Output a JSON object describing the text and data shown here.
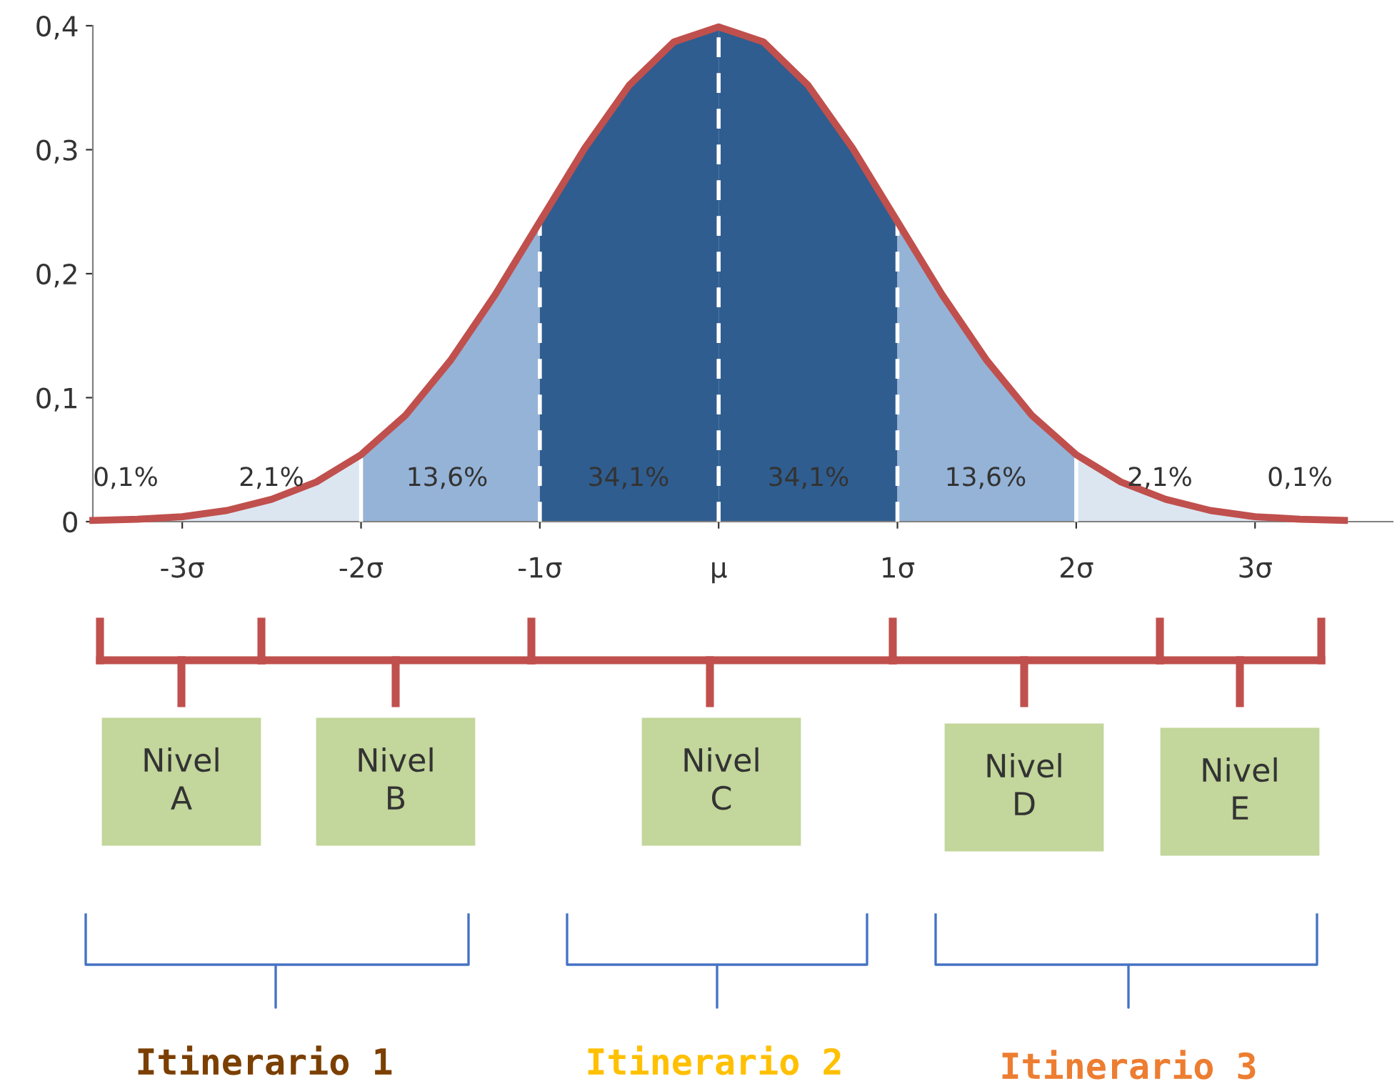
{
  "chart_data": {
    "type": "area",
    "xlim": [
      -3.5,
      3.77
    ],
    "ylim": [
      0,
      0.4
    ],
    "xticks": [
      {
        "value": -3,
        "label": "-3σ"
      },
      {
        "value": -2,
        "label": "-2σ"
      },
      {
        "value": -1,
        "label": "-1σ"
      },
      {
        "value": 0,
        "label": "μ"
      },
      {
        "value": 1,
        "label": "1σ"
      },
      {
        "value": 2,
        "label": "2σ"
      },
      {
        "value": 3,
        "label": "3σ"
      }
    ],
    "yticks": [
      {
        "value": 0,
        "label": "0"
      },
      {
        "value": 0.1,
        "label": "0,1"
      },
      {
        "value": 0.2,
        "label": "0,2"
      },
      {
        "value": 0.3,
        "label": "0,3"
      },
      {
        "value": 0.4,
        "label": "0,4"
      }
    ],
    "grid": false,
    "legend": false,
    "series": [
      {
        "color": "#dce6f1",
        "x": [
          -3.5,
          -3.25,
          -3,
          -2.75,
          -2.5,
          -2.25,
          -2
        ],
        "values": [
          0.001,
          0.002,
          0.004,
          0.009,
          0.018,
          0.032,
          0.054
        ]
      },
      {
        "color": "#95b3d7",
        "x": [
          -2,
          -1.75,
          -1.5,
          -1.25,
          -1
        ],
        "values": [
          0.054,
          0.086,
          0.13,
          0.183,
          0.242
        ]
      },
      {
        "color": "#2f5d8f",
        "x": [
          -1,
          -0.75,
          -0.5,
          -0.25,
          0
        ],
        "values": [
          0.242,
          0.301,
          0.352,
          0.387,
          0.399
        ]
      },
      {
        "color": "#2f5d8f",
        "x": [
          0,
          0.25,
          0.5,
          0.75,
          1
        ],
        "values": [
          0.399,
          0.387,
          0.352,
          0.301,
          0.242
        ]
      },
      {
        "color": "#95b3d7",
        "x": [
          1,
          1.25,
          1.5,
          1.75,
          2
        ],
        "values": [
          0.242,
          0.183,
          0.13,
          0.086,
          0.054
        ]
      },
      {
        "color": "#dce6f1",
        "x": [
          2,
          2.25,
          2.5,
          2.75,
          3,
          3.25,
          3.5
        ],
        "values": [
          0.054,
          0.032,
          0.018,
          0.009,
          0.004,
          0.002,
          0.001
        ]
      },
      {
        "type": "line",
        "color": "#c0504d",
        "x": [
          -3.5,
          -3.25,
          -3,
          -2.75,
          -2.5,
          -2.25,
          -2,
          -1.75,
          -1.5,
          -1.25,
          -1,
          -0.75,
          -0.5,
          -0.25,
          0,
          0.25,
          0.5,
          0.75,
          1,
          1.25,
          1.5,
          1.75,
          2,
          2.25,
          2.5,
          2.75,
          3,
          3.25,
          3.5
        ],
        "values": [
          0.001,
          0.002,
          0.004,
          0.009,
          0.018,
          0.032,
          0.054,
          0.086,
          0.13,
          0.183,
          0.242,
          0.301,
          0.352,
          0.387,
          0.399,
          0.387,
          0.352,
          0.301,
          0.242,
          0.183,
          0.13,
          0.086,
          0.054,
          0.032,
          0.018,
          0.009,
          0.004,
          0.002,
          0.001
        ]
      }
    ],
    "ref_lines": [
      {
        "axis": "x",
        "value": -2,
        "color": "#ffffff",
        "line_style": "solid"
      },
      {
        "axis": "x",
        "value": -1,
        "color": "#ffffff",
        "line_style": "dashed"
      },
      {
        "axis": "x",
        "value": 0,
        "color": "#ffffff",
        "line_style": "dashed"
      },
      {
        "axis": "x",
        "value": 1,
        "color": "#ffffff",
        "line_style": "dashed"
      },
      {
        "axis": "x",
        "value": 2,
        "color": "#ffffff",
        "line_style": "solid"
      }
    ],
    "annotations": [
      "0,1%",
      "2,1%",
      "13,6%",
      "34,1%",
      "34,1%",
      "13,6%",
      "2,1%",
      "0,1%",
      "Nivel\nA",
      "Nivel\nB",
      "Nivel\nC",
      "Nivel\nD",
      "Nivel\nE",
      "Itinerario 1",
      "Itinerario 2",
      "Itinerario 3"
    ]
  }
}
